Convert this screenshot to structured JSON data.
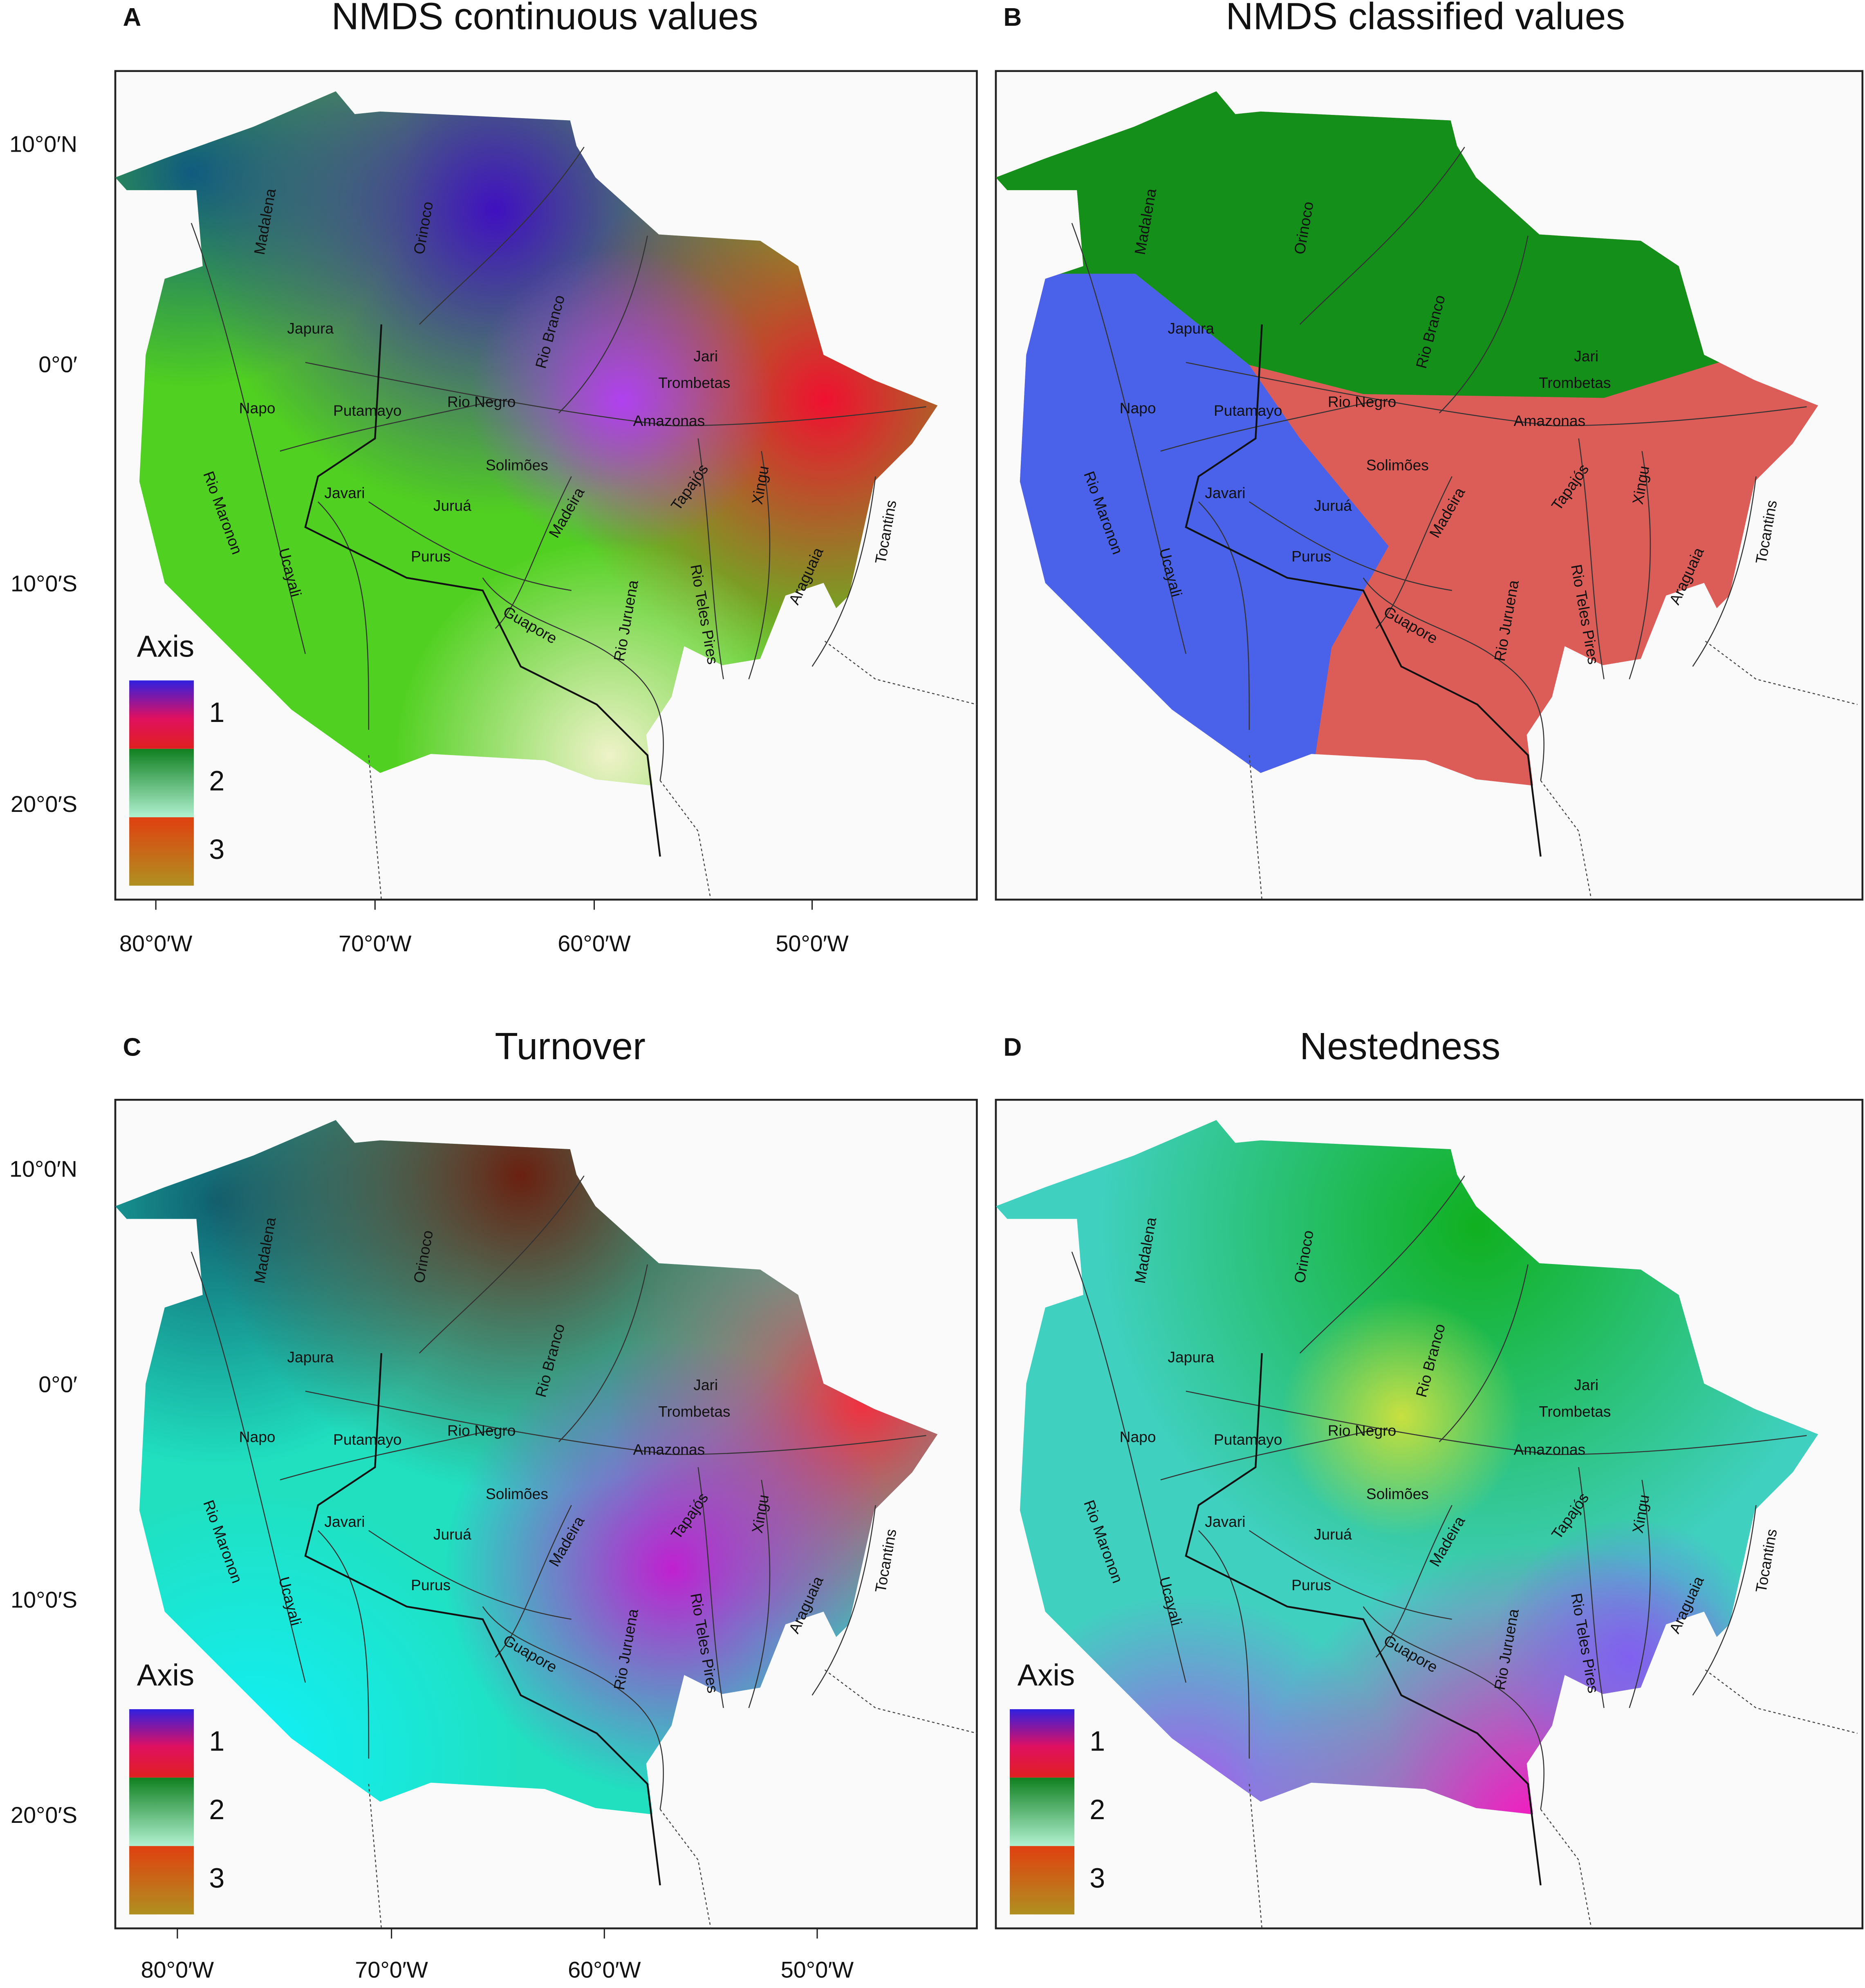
{
  "panels": [
    {
      "letter": "A",
      "title": "NMDS continuous values",
      "lat_ticks": [
        "10°0′N",
        "0°0′",
        "10°0′S",
        "20°0′S"
      ],
      "lon_ticks": [
        "80°0′W",
        "70°0′W",
        "60°0′W",
        "50°0′W"
      ],
      "legend": {
        "title": "Axis",
        "items": [
          "1",
          "2",
          "3"
        ]
      }
    },
    {
      "letter": "B",
      "title": "NMDS classified values"
    },
    {
      "letter": "C",
      "title": "Turnover",
      "lat_ticks": [
        "10°0′N",
        "0°0′",
        "10°0′S",
        "20°0′S"
      ],
      "lon_ticks": [
        "80°0′W",
        "70°0′W",
        "60°0′W",
        "50°0′W"
      ],
      "legend": {
        "title": "Axis",
        "items": [
          "1",
          "2",
          "3"
        ]
      }
    },
    {
      "letter": "D",
      "title": "Nestedness",
      "legend": {
        "title": "Axis",
        "items": [
          "1",
          "2",
          "3"
        ]
      }
    }
  ],
  "rivers": [
    "Madalena",
    "Orinoco",
    "Japura",
    "Napo",
    "Putamayo",
    "Rio Negro",
    "Rio Branco",
    "Jari",
    "Trombetas",
    "Amazonas",
    "Solimões",
    "Rio Maronon",
    "Javari",
    "Juruá",
    "Madeira",
    "Tapajós",
    "Xingu",
    "Tocantins",
    "Ucayali",
    "Purus",
    "Araguaia",
    "Rio Juruena",
    "Rio Teles Pires",
    "Guapore"
  ]
}
